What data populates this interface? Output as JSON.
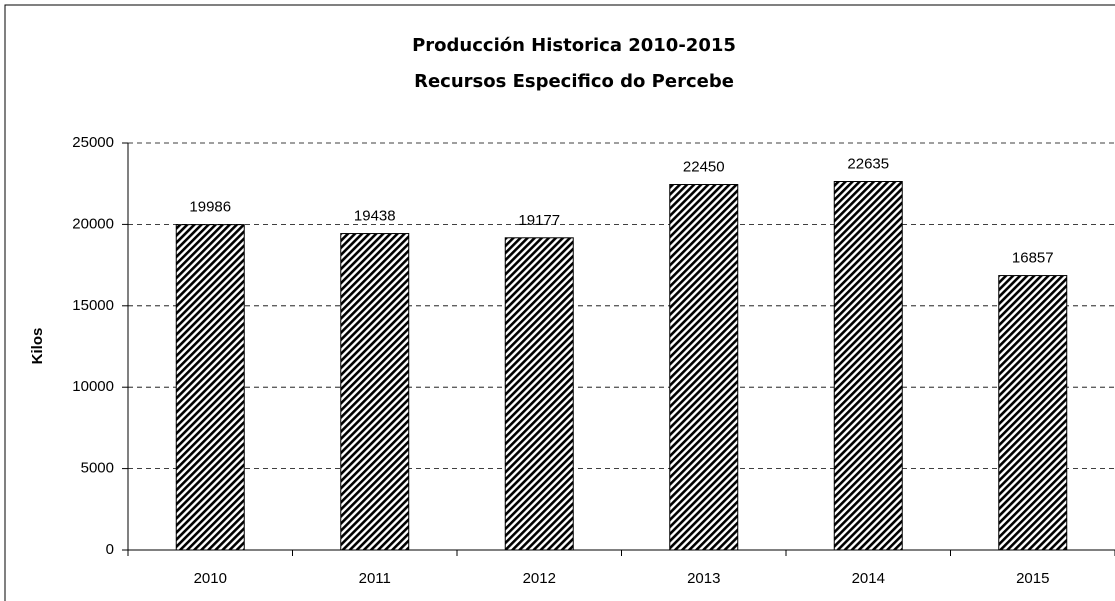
{
  "chart_data": {
    "type": "bar",
    "title": "Producción Historica 2010-2015",
    "subtitle": "Recursos Especifico do Percebe",
    "y_label": "Kilos",
    "categories": [
      "2010",
      "2011",
      "2012",
      "2013",
      "2014",
      "2015"
    ],
    "values": [
      19986,
      19438,
      19177,
      22450,
      22635,
      16857
    ],
    "color": "#000000",
    "ylim": [
      0,
      25000
    ],
    "yticks": [
      0,
      5000,
      10000,
      15000,
      20000,
      25000
    ],
    "grid": true
  }
}
